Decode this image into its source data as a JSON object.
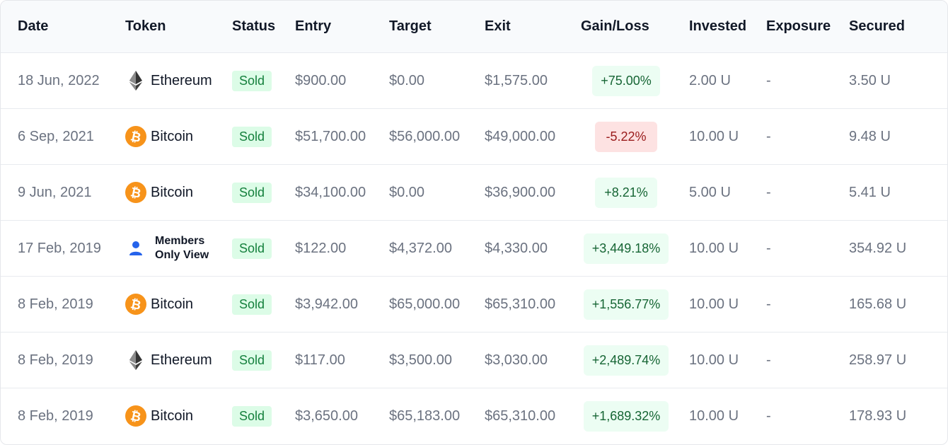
{
  "columns": {
    "date": "Date",
    "token": "Token",
    "status": "Status",
    "entry": "Entry",
    "target": "Target",
    "exit": "Exit",
    "gain_loss": "Gain/Loss",
    "invested": "Invested",
    "exposure": "Exposure",
    "secured": "Secured"
  },
  "colors": {
    "positive_bg": "#ecfdf3",
    "positive_text": "#166534",
    "negative_bg": "#fde2e2",
    "negative_text": "#991b1b",
    "sold_bg": "#dcfce7",
    "sold_text": "#15803d",
    "bitcoin_orange": "#f7931a"
  },
  "rows": [
    {
      "date": "18 Jun, 2022",
      "token": "Ethereum",
      "token_icon": "ethereum-icon",
      "status": "Sold",
      "entry": "$900.00",
      "target": "$0.00",
      "exit": "$1,575.00",
      "gain_loss": "+75.00%",
      "gain_type": "positive",
      "invested": "2.00 U",
      "exposure": "-",
      "secured": "3.50 U"
    },
    {
      "date": "6 Sep, 2021",
      "token": "Bitcoin",
      "token_icon": "bitcoin-icon",
      "status": "Sold",
      "entry": "$51,700.00",
      "target": "$56,000.00",
      "exit": "$49,000.00",
      "gain_loss": "-5.22%",
      "gain_type": "negative",
      "invested": "10.00 U",
      "exposure": "-",
      "secured": "9.48 U"
    },
    {
      "date": "9 Jun, 2021",
      "token": "Bitcoin",
      "token_icon": "bitcoin-icon",
      "status": "Sold",
      "entry": "$34,100.00",
      "target": "$0.00",
      "exit": "$36,900.00",
      "gain_loss": "+8.21%",
      "gain_type": "positive",
      "invested": "5.00 U",
      "exposure": "-",
      "secured": "5.41 U"
    },
    {
      "date": "17 Feb, 2019",
      "token": "Members Only View",
      "token_icon": "user-icon",
      "status": "Sold",
      "entry": "$122.00",
      "target": "$4,372.00",
      "exit": "$4,330.00",
      "gain_loss": "+3,449.18%",
      "gain_type": "positive",
      "invested": "10.00 U",
      "exposure": "-",
      "secured": "354.92 U"
    },
    {
      "date": "8 Feb, 2019",
      "token": "Bitcoin",
      "token_icon": "bitcoin-icon",
      "status": "Sold",
      "entry": "$3,942.00",
      "target": "$65,000.00",
      "exit": "$65,310.00",
      "gain_loss": "+1,556.77%",
      "gain_type": "positive",
      "invested": "10.00 U",
      "exposure": "-",
      "secured": "165.68 U"
    },
    {
      "date": "8 Feb, 2019",
      "token": "Ethereum",
      "token_icon": "ethereum-icon",
      "status": "Sold",
      "entry": "$117.00",
      "target": "$3,500.00",
      "exit": "$3,030.00",
      "gain_loss": "+2,489.74%",
      "gain_type": "positive",
      "invested": "10.00 U",
      "exposure": "-",
      "secured": "258.97 U"
    },
    {
      "date": "8 Feb, 2019",
      "token": "Bitcoin",
      "token_icon": "bitcoin-icon",
      "status": "Sold",
      "entry": "$3,650.00",
      "target": "$65,183.00",
      "exit": "$65,310.00",
      "gain_loss": "+1,689.32%",
      "gain_type": "positive",
      "invested": "10.00 U",
      "exposure": "-",
      "secured": "178.93 U"
    }
  ]
}
